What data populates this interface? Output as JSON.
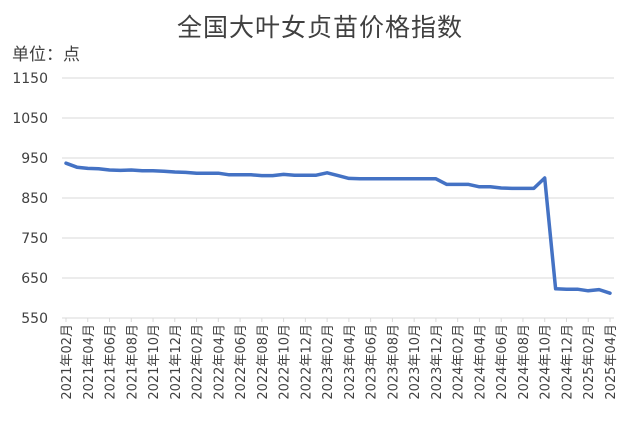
{
  "chart_data": {
    "type": "line",
    "title": "全国大叶女贞苗价格指数",
    "unit_label": "单位：点",
    "ylim": [
      550,
      1150
    ],
    "yticks": [
      550,
      650,
      750,
      850,
      950,
      1050,
      1150
    ],
    "grid": "horizontal",
    "line_color": "#4472C4",
    "x_tick_labels": [
      "2021年02月",
      "2021年04月",
      "2021年06月",
      "2021年08月",
      "2021年10月",
      "2021年12月",
      "2022年02月",
      "2022年04月",
      "2022年06月",
      "2022年08月",
      "2022年10月",
      "2022年12月",
      "2023年02月",
      "2023年04月",
      "2023年06月",
      "2023年08月",
      "2023年10月",
      "2023年12月",
      "2024年02月",
      "2024年04月",
      "2024年06月",
      "2024年08月",
      "2024年10月",
      "2024年12月",
      "2025年02月",
      "2025年04月"
    ],
    "x": [
      "2021年02月",
      "2021年03月",
      "2021年04月",
      "2021年05月",
      "2021年06月",
      "2021年07月",
      "2021年08月",
      "2021年09月",
      "2021年10月",
      "2021年11月",
      "2021年12月",
      "2022年01月",
      "2022年02月",
      "2022年03月",
      "2022年04月",
      "2022年05月",
      "2022年06月",
      "2022年07月",
      "2022年08月",
      "2022年09月",
      "2022年10月",
      "2022年11月",
      "2022年12月",
      "2023年01月",
      "2023年02月",
      "2023年03月",
      "2023年04月",
      "2023年05月",
      "2023年06月",
      "2023年07月",
      "2023年08月",
      "2023年09月",
      "2023年10月",
      "2023年11月",
      "2023年12月",
      "2024年01月",
      "2024年02月",
      "2024年03月",
      "2024年04月",
      "2024年05月",
      "2024年06月",
      "2024年07月",
      "2024年08月",
      "2024年09月",
      "2024年10月",
      "2024年11月",
      "2024年12月",
      "2025年01月",
      "2025年02月",
      "2025年03月",
      "2025年04月"
    ],
    "series": [
      {
        "values": [
          937,
          927,
          924,
          923,
          920,
          919,
          920,
          918,
          918,
          917,
          915,
          914,
          912,
          912,
          912,
          908,
          908,
          908,
          906,
          906,
          909,
          907,
          907,
          907,
          913,
          906,
          899,
          898,
          898,
          898,
          898,
          898,
          898,
          898,
          898,
          884,
          884,
          884,
          878,
          878,
          875,
          874,
          874,
          874,
          900,
          623,
          622,
          622,
          618,
          621,
          612
        ]
      }
    ]
  }
}
